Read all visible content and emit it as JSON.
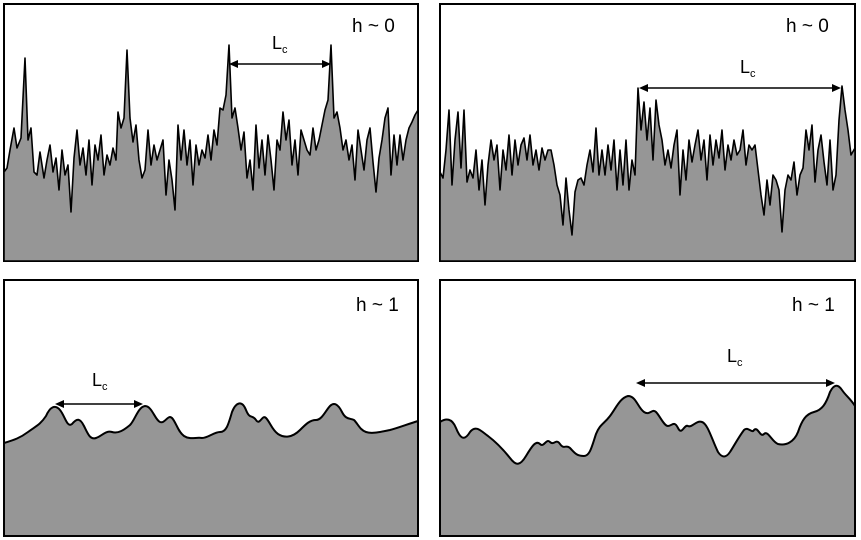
{
  "panels": [
    {
      "label": "h ~ 0",
      "lc_main": "L",
      "lc_sub": "c"
    },
    {
      "label": "h ~ 0",
      "lc_main": "L",
      "lc_sub": "c"
    },
    {
      "label": "h ~ 1",
      "lc_main": "L",
      "lc_sub": "c"
    },
    {
      "label": "h ~ 1",
      "lc_main": "L",
      "lc_sub": "c"
    }
  ],
  "colors": {
    "fill": "#969696",
    "stroke": "#000000",
    "background": "#ffffff"
  }
}
